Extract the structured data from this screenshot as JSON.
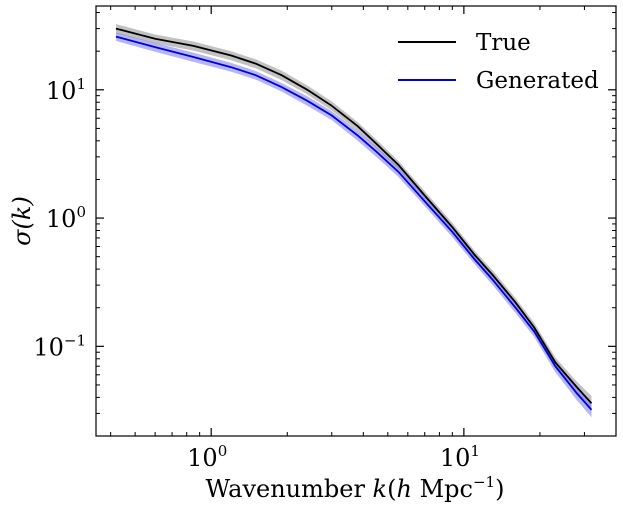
{
  "chart_data": {
    "type": "line",
    "x_scale": "log",
    "y_scale": "log",
    "xlabel_prefix": "Wavenumber ",
    "xlabel_var": "k",
    "xlabel_open": "(",
    "xlabel_h": "h",
    "xlabel_unit": " Mpc",
    "xlabel_exp": "−1",
    "xlabel_close": ")",
    "ylabel": "σ(k)",
    "xlim": [
      0.35,
      40
    ],
    "ylim": [
      0.02,
      45
    ],
    "x_ticks": [
      {
        "value": 1,
        "base": "10",
        "exp": "0"
      },
      {
        "value": 10,
        "base": "10",
        "exp": "1"
      }
    ],
    "y_ticks": [
      {
        "value": 0.1,
        "base": "10",
        "exp": "−1"
      },
      {
        "value": 1,
        "base": "10",
        "exp": "0"
      },
      {
        "value": 10,
        "base": "10",
        "exp": "1"
      }
    ],
    "legend_position": "top-right",
    "series": [
      {
        "name": "True",
        "color": "#000000",
        "band_color": "#8f8f8f",
        "x": [
          0.42,
          0.6,
          0.85,
          1.2,
          1.5,
          1.9,
          2.4,
          3.0,
          3.8,
          4.5,
          5.5,
          7,
          9,
          11,
          13,
          16,
          19,
          23,
          28,
          32
        ],
        "y": [
          30,
          25,
          22,
          18.5,
          16,
          13,
          10,
          7.5,
          5.2,
          3.8,
          2.6,
          1.5,
          0.85,
          0.52,
          0.36,
          0.22,
          0.14,
          0.075,
          0.048,
          0.036
        ],
        "y_low": [
          27.5,
          23,
          20.2,
          17,
          14.7,
          11.9,
          9.2,
          6.9,
          4.8,
          3.5,
          2.4,
          1.38,
          0.78,
          0.48,
          0.33,
          0.202,
          0.128,
          0.068,
          0.043,
          0.031
        ],
        "y_high": [
          32.5,
          27,
          23.8,
          20,
          17.3,
          14.1,
          10.8,
          8.1,
          5.6,
          4.1,
          2.8,
          1.62,
          0.92,
          0.56,
          0.39,
          0.238,
          0.152,
          0.082,
          0.053,
          0.041
        ]
      },
      {
        "name": "Generated",
        "color": "#0000dd",
        "band_color": "#7a7af0",
        "x": [
          0.42,
          0.6,
          0.85,
          1.2,
          1.5,
          1.9,
          2.4,
          3.0,
          3.8,
          4.5,
          5.5,
          7,
          9,
          11,
          13,
          16,
          19,
          23,
          28,
          32
        ],
        "y": [
          26,
          21.5,
          18,
          15,
          13,
          10.5,
          8.2,
          6.3,
          4.4,
          3.3,
          2.3,
          1.35,
          0.78,
          0.48,
          0.33,
          0.2,
          0.13,
          0.07,
          0.043,
          0.032
        ],
        "y_low": [
          24,
          19.8,
          16.5,
          13.8,
          12,
          9.7,
          7.5,
          5.8,
          4.0,
          3.0,
          2.1,
          1.24,
          0.71,
          0.44,
          0.3,
          0.182,
          0.118,
          0.063,
          0.038,
          0.028
        ],
        "y_high": [
          28,
          23.2,
          19.5,
          16.2,
          14,
          11.3,
          8.9,
          6.8,
          4.8,
          3.6,
          2.5,
          1.46,
          0.85,
          0.52,
          0.36,
          0.218,
          0.142,
          0.077,
          0.048,
          0.036
        ]
      }
    ]
  }
}
